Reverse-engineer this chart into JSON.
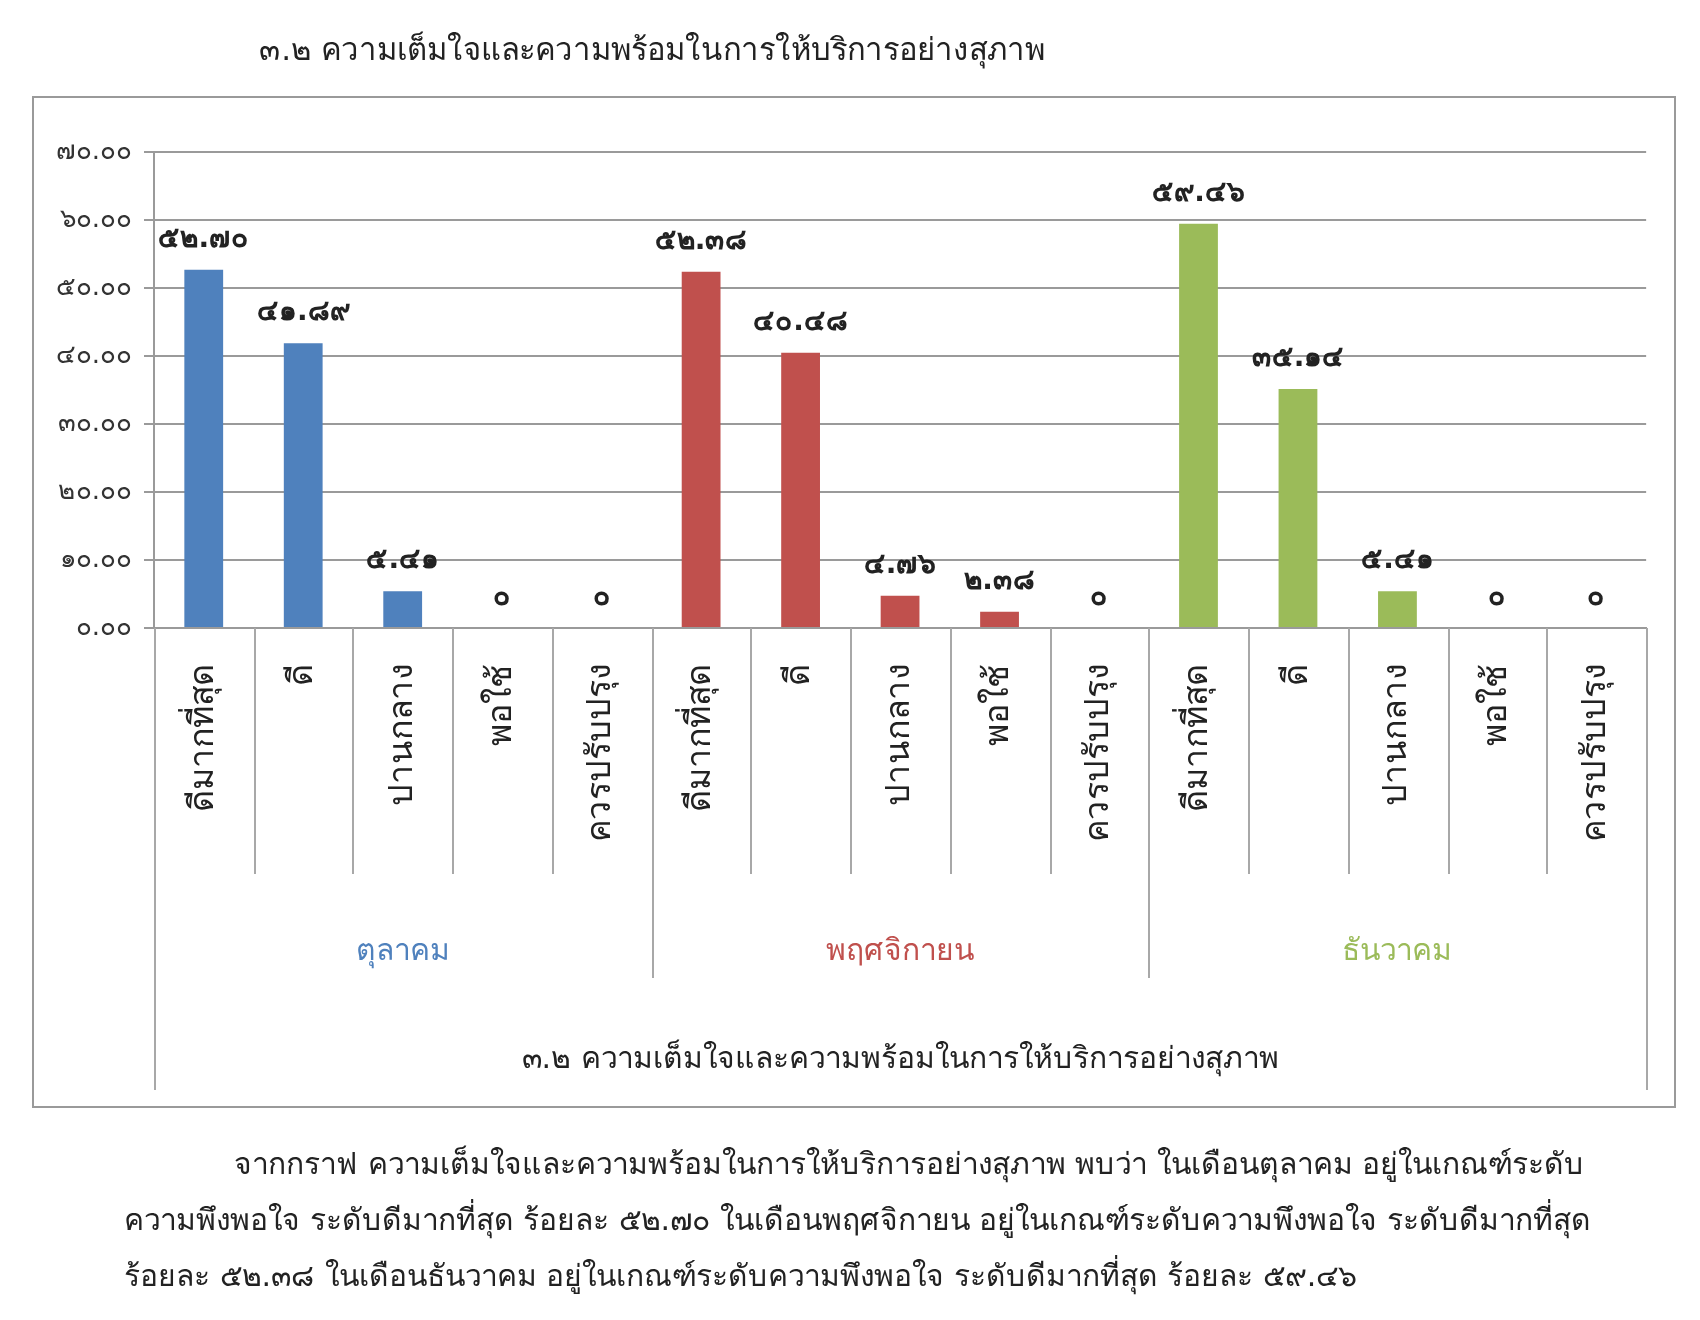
{
  "chart_data": {
    "type": "bar",
    "title": "๓.๒ ความเต็มใจและความพร้อมในการให้บริการอย่างสุภาพ",
    "categories": [
      "ดีมากที่สุด",
      "ดี",
      "ปานกลาง",
      "พอใช้",
      "ควรปรับปรุง",
      "ดีมากที่สุด",
      "ดี",
      "ปานกลาง",
      "พอใช้",
      "ควรปรับปรุง",
      "ดีมากที่สุด",
      "ดี",
      "ปานกลาง",
      "พอใช้",
      "ควรปรับปรุง"
    ],
    "series": [
      {
        "name": "ตุลาคม",
        "color": "#4f81bd",
        "values": [
          52.7,
          41.89,
          5.41,
          0,
          0,
          null,
          null,
          null,
          null,
          null,
          null,
          null,
          null,
          null,
          null
        ],
        "value_labels": [
          "๕๒.๗๐",
          "๔๑.๘๙",
          "๕.๔๑",
          "๐",
          "๐",
          null,
          null,
          null,
          null,
          null,
          null,
          null,
          null,
          null,
          null
        ]
      },
      {
        "name": "พฤศจิกายน",
        "color": "#c0504d",
        "values": [
          null,
          null,
          null,
          null,
          null,
          52.38,
          40.48,
          4.76,
          2.38,
          0,
          null,
          null,
          null,
          null,
          null
        ],
        "value_labels": [
          null,
          null,
          null,
          null,
          null,
          "๕๒.๓๘",
          "๔๐.๔๘",
          "๔.๗๖",
          "๒.๓๘",
          "๐",
          null,
          null,
          null,
          null,
          null
        ]
      },
      {
        "name": "ธันวาคม",
        "color": "#9bbb59",
        "values": [
          null,
          null,
          null,
          null,
          null,
          null,
          null,
          null,
          null,
          null,
          59.46,
          35.14,
          5.41,
          0,
          0
        ],
        "value_labels": [
          null,
          null,
          null,
          null,
          null,
          null,
          null,
          null,
          null,
          null,
          "๕๙.๔๖",
          "๓๕.๑๔",
          "๕.๔๑",
          "๐",
          "๐"
        ]
      }
    ],
    "ylim": [
      0,
      70
    ],
    "yticks": [
      {
        "value": 0,
        "label": "๐.๐๐"
      },
      {
        "value": 10,
        "label": "๑๐.๐๐"
      },
      {
        "value": 20,
        "label": "๒๐.๐๐"
      },
      {
        "value": 30,
        "label": "๓๐.๐๐"
      },
      {
        "value": 40,
        "label": "๔๐.๐๐"
      },
      {
        "value": 50,
        "label": "๕๐.๐๐"
      },
      {
        "value": 60,
        "label": "๖๐.๐๐"
      },
      {
        "value": 70,
        "label": "๗๐.๐๐"
      }
    ],
    "grid": "y",
    "annotations": [
      "๓.๒ ความเต็มใจและความพร้อมในการให้บริการอย่างสุภาพ",
      "จากกราฟ ความเต็มใจและความพร้อมในการให้บริการอย่างสุภาพ พบว่า ในเดือนตุลาคม อยู่ในเกณฑ์ระดับความพึงพอใจ ระดับดีมากที่สุด ร้อยละ ๕๒.๗๐  ในเดือนพฤศจิกายน อยู่ในเกณฑ์ระดับความพึงพอใจ ระดับดีมากที่สุด ร้อยละ ๕๒.๓๘  ในเดือนธันวาคม อยู่ในเกณฑ์ระดับความพึงพอใจ ระดับดีมากที่สุด ร้อยละ ๕๙.๔๖"
    ]
  }
}
